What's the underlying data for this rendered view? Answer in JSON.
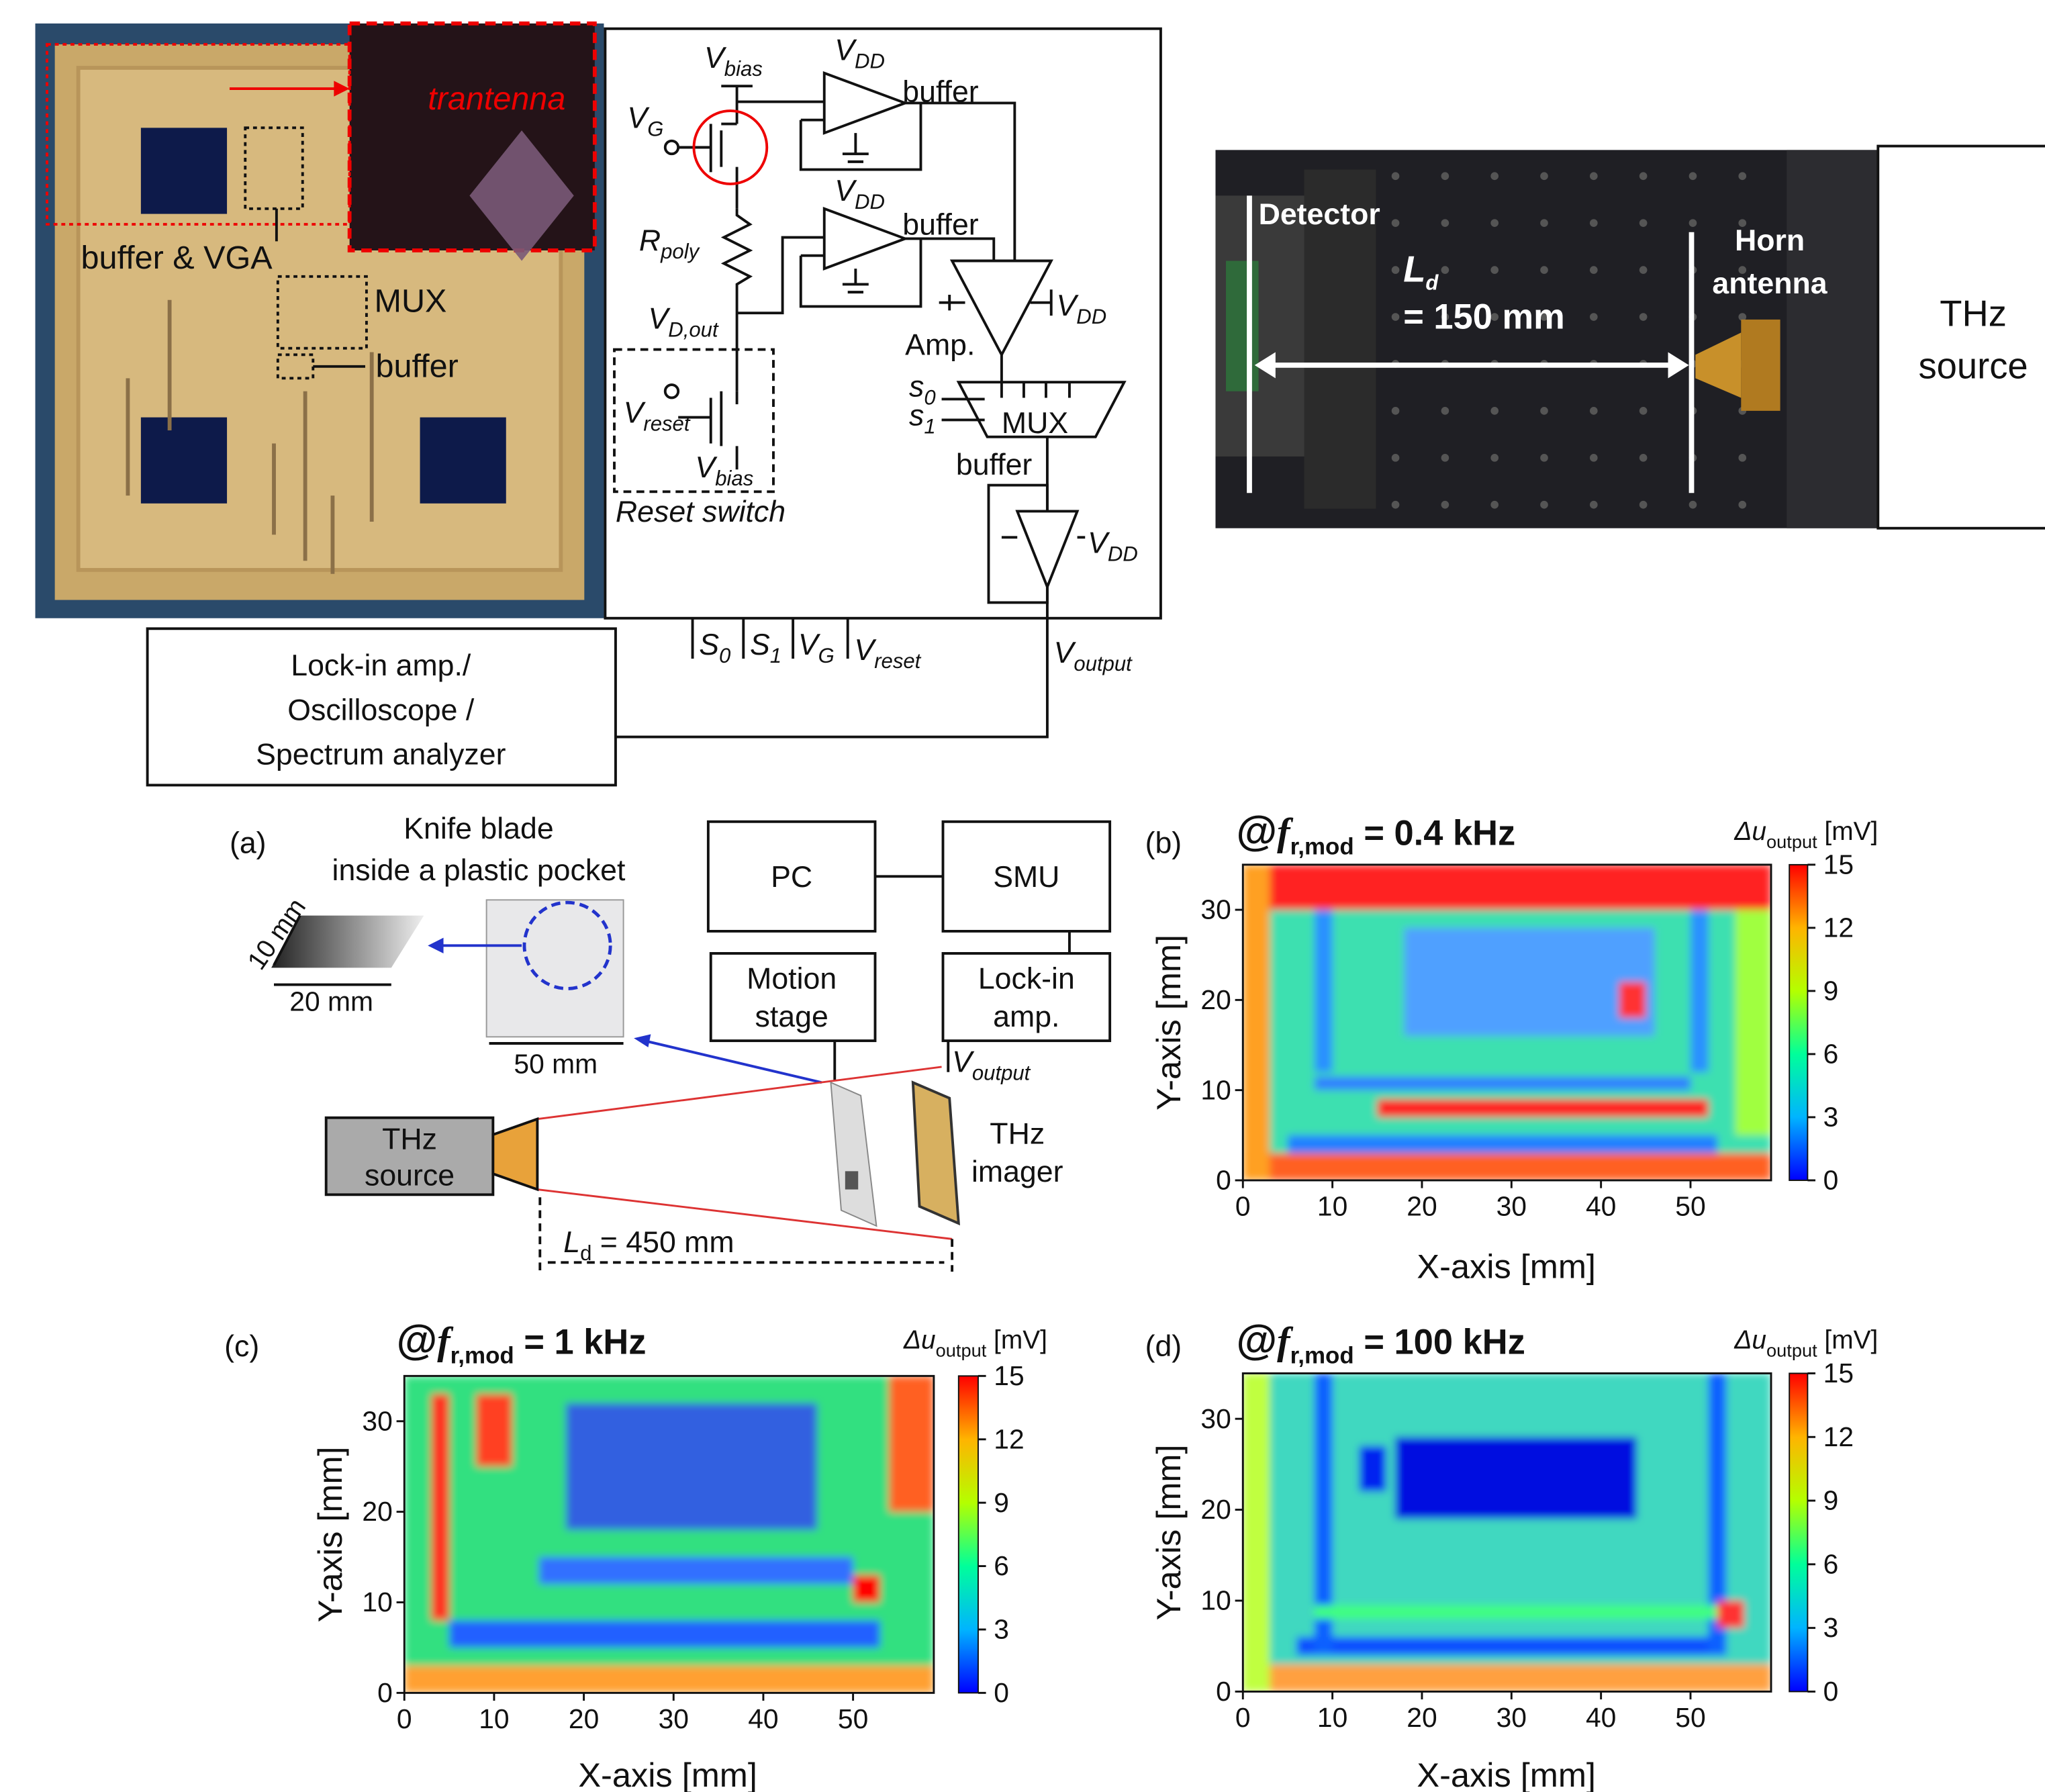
{
  "chip": {
    "trantenna": "trantenna",
    "buffer_vga": "buffer & VGA",
    "mux": "MUX",
    "buffer": "buffer"
  },
  "circuit": {
    "v_bias_top": {
      "main": "V",
      "sub": "bias"
    },
    "vdd_1": {
      "main": "V",
      "sub": "DD"
    },
    "buffer_1": "buffer",
    "vg": {
      "main": "V",
      "sub": "G"
    },
    "vdd_2": {
      "main": "V",
      "sub": "DD"
    },
    "buffer_2": "buffer",
    "rpoly": {
      "main": "R",
      "sub": "poly"
    },
    "vdd_3": {
      "main": "V",
      "sub": "DD"
    },
    "amp": "Amp.",
    "vdout": {
      "main": "V",
      "sub": "D,out"
    },
    "s0": {
      "main": "s",
      "sub": "0"
    },
    "s1": {
      "main": "s",
      "sub": "1"
    },
    "mux": "MUX",
    "vreset": {
      "main": "V",
      "sub": "reset"
    },
    "v_bias_bottom": {
      "main": "V",
      "sub": "bias"
    },
    "buffer_3": "buffer",
    "reset_switch": "Reset switch",
    "vdd_4": {
      "main": "V",
      "sub": "DD"
    },
    "pins": [
      {
        "main": "S",
        "sub": "0"
      },
      {
        "main": "S",
        "sub": "1"
      },
      {
        "main": "V",
        "sub": "G"
      },
      {
        "main": "V",
        "sub": "reset"
      }
    ],
    "v_output": {
      "main": "V",
      "sub": "output"
    }
  },
  "instrument": [
    "Lock-in amp./",
    "Oscilloscope /",
    "Spectrum analyzer"
  ],
  "setup_photo": {
    "detector": "Detector",
    "ld": {
      "main": "L",
      "sub": "d"
    },
    "distance": "= 150 mm",
    "horn": [
      "Horn",
      "antenna"
    ],
    "source": [
      "THz",
      "source"
    ]
  },
  "panel_a": {
    "label": "(a)",
    "knife": [
      "Knife blade",
      "inside a plastic pocket"
    ],
    "dim_10": "10 mm",
    "dim_20": "20 mm",
    "dim_50": "50 mm",
    "pc": "PC",
    "smu": "SMU",
    "motion": [
      "Motion",
      "stage"
    ],
    "lockin": [
      "Lock-in",
      "amp."
    ],
    "v_output": {
      "main": "V",
      "sub": "output"
    },
    "source": [
      "THz",
      "source"
    ],
    "imager": [
      "THz",
      "imager"
    ],
    "ld": {
      "main": "L",
      "sub": "d",
      "rest": " = 450 mm"
    }
  },
  "chart_data": [
    {
      "type": "heatmap",
      "panel": "(b)",
      "title": {
        "prefix": "@",
        "var": "f",
        "sub": "r,mod",
        "rest": " = 0.4 kHz"
      },
      "xlabel": "X-axis [mm]",
      "ylabel": "Y-axis [mm]",
      "colorbar_label": {
        "main": "Δu",
        "sub": "output",
        "unit": " [mV]"
      },
      "xlim": [
        0,
        59
      ],
      "ylim": [
        0,
        35
      ],
      "xticks": [
        0,
        10,
        20,
        30,
        40,
        50
      ],
      "yticks": [
        0,
        10,
        20,
        30
      ],
      "clim": [
        0,
        15
      ],
      "cticks": [
        0,
        3,
        6,
        9,
        12,
        15
      ],
      "colormap": [
        "#0000ff",
        "#00b4ff",
        "#00ff9a",
        "#b4ff00",
        "#ffb400",
        "#ff0000"
      ]
    },
    {
      "type": "heatmap",
      "panel": "(c)",
      "title": {
        "prefix": "@",
        "var": "f",
        "sub": "r,mod",
        "rest": " = 1 kHz"
      },
      "xlabel": "X-axis [mm]",
      "ylabel": "Y-axis [mm]",
      "colorbar_label": {
        "main": "Δu",
        "sub": "output",
        "unit": " [mV]"
      },
      "xlim": [
        0,
        59
      ],
      "ylim": [
        0,
        35
      ],
      "xticks": [
        0,
        10,
        20,
        30,
        40,
        50
      ],
      "yticks": [
        0,
        10,
        20,
        30
      ],
      "clim": [
        0,
        15
      ],
      "cticks": [
        0,
        3,
        6,
        9,
        12,
        15
      ],
      "colormap": [
        "#0000ff",
        "#00b4ff",
        "#00ff9a",
        "#b4ff00",
        "#ffb400",
        "#ff0000"
      ]
    },
    {
      "type": "heatmap",
      "panel": "(d)",
      "title": {
        "prefix": "@",
        "var": "f",
        "sub": "r,mod",
        "rest": " = 100 kHz"
      },
      "xlabel": "X-axis [mm]",
      "ylabel": "Y-axis [mm]",
      "colorbar_label": {
        "main": "Δu",
        "sub": "output",
        "unit": " [mV]"
      },
      "xlim": [
        0,
        59
      ],
      "ylim": [
        0,
        35
      ],
      "xticks": [
        0,
        10,
        20,
        30,
        40,
        50
      ],
      "yticks": [
        0,
        10,
        20,
        30
      ],
      "clim": [
        0,
        15
      ],
      "cticks": [
        0,
        3,
        6,
        9,
        12,
        15
      ],
      "colormap": [
        "#0000ff",
        "#00b4ff",
        "#00ff9a",
        "#b4ff00",
        "#ffb400",
        "#ff0000"
      ]
    }
  ]
}
